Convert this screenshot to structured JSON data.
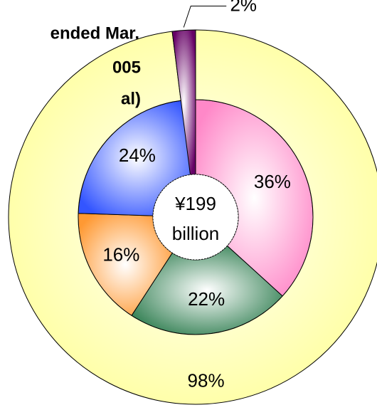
{
  "chart_data": {
    "type": "donut",
    "title": [
      "ended Mar.",
      "005",
      "al)"
    ],
    "center_label": [
      "¥199",
      "billion"
    ],
    "series": [
      {
        "values": [
          98,
          2
        ],
        "value_labels": [
          "98%",
          "2%"
        ],
        "colors": [
          "#ffff99",
          "#660066"
        ]
      },
      {
        "values": [
          36,
          22,
          16,
          24
        ],
        "value_labels": [
          "36%",
          "22%",
          "16%",
          "24%"
        ],
        "colors": [
          "#ff88c8",
          "#2e7d4f",
          "#ff9933",
          "#3355ff"
        ]
      }
    ]
  }
}
